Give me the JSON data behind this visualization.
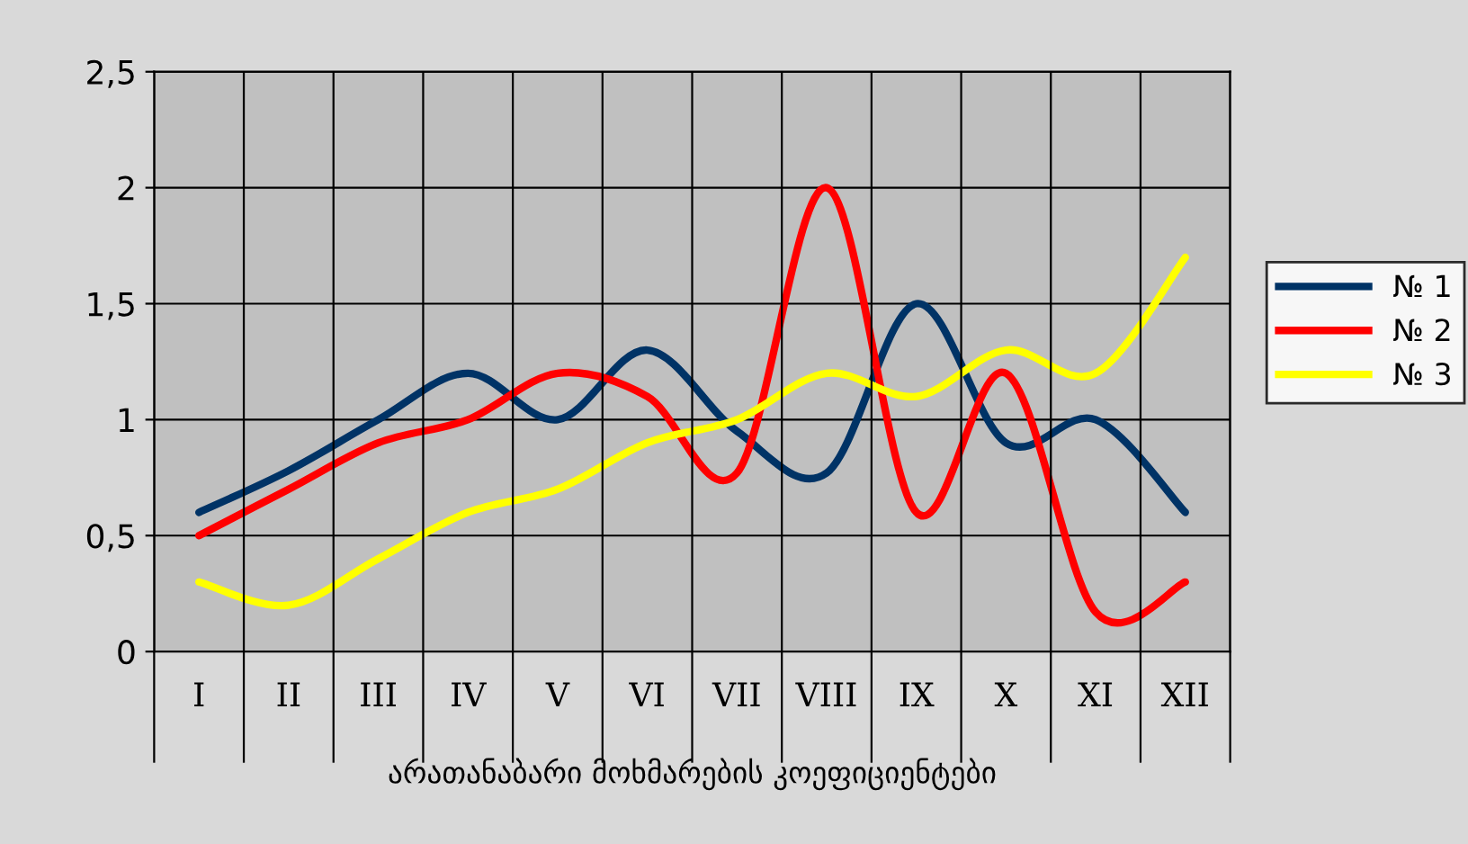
{
  "chart_data": {
    "type": "line",
    "xlabel": "არათანაბარი მოხმარების კოეფიციენტები",
    "categories": [
      "I",
      "II",
      "III",
      "IV",
      "V",
      "VI",
      "VII",
      "VIII",
      "IX",
      "X",
      "XI",
      "XII"
    ],
    "series": [
      {
        "name": "№ 1",
        "color": "#003366",
        "values": [
          0.6,
          0.78,
          1.0,
          1.2,
          1.0,
          1.3,
          0.95,
          0.77,
          1.5,
          0.9,
          1.0,
          0.6
        ]
      },
      {
        "name": "№ 2",
        "color": "#ff0000",
        "values": [
          0.5,
          0.7,
          0.9,
          1.0,
          1.2,
          1.1,
          0.77,
          2.0,
          0.6,
          1.2,
          0.17,
          0.3
        ]
      },
      {
        "name": "№ 3",
        "color": "#ffff00",
        "values": [
          0.3,
          0.2,
          0.4,
          0.6,
          0.7,
          0.9,
          1.0,
          1.2,
          1.1,
          1.3,
          1.2,
          1.7
        ]
      }
    ],
    "ylim": [
      0,
      2.5
    ],
    "yticks": [
      {
        "value": 0,
        "label": "0"
      },
      {
        "value": 0.5,
        "label": "0,5"
      },
      {
        "value": 1,
        "label": "1"
      },
      {
        "value": 1.5,
        "label": "1,5"
      },
      {
        "value": 2,
        "label": "2"
      },
      {
        "value": 2.5,
        "label": "2,5"
      }
    ],
    "grid": true,
    "legend": "right",
    "marker": "none",
    "line_style": "solid"
  }
}
